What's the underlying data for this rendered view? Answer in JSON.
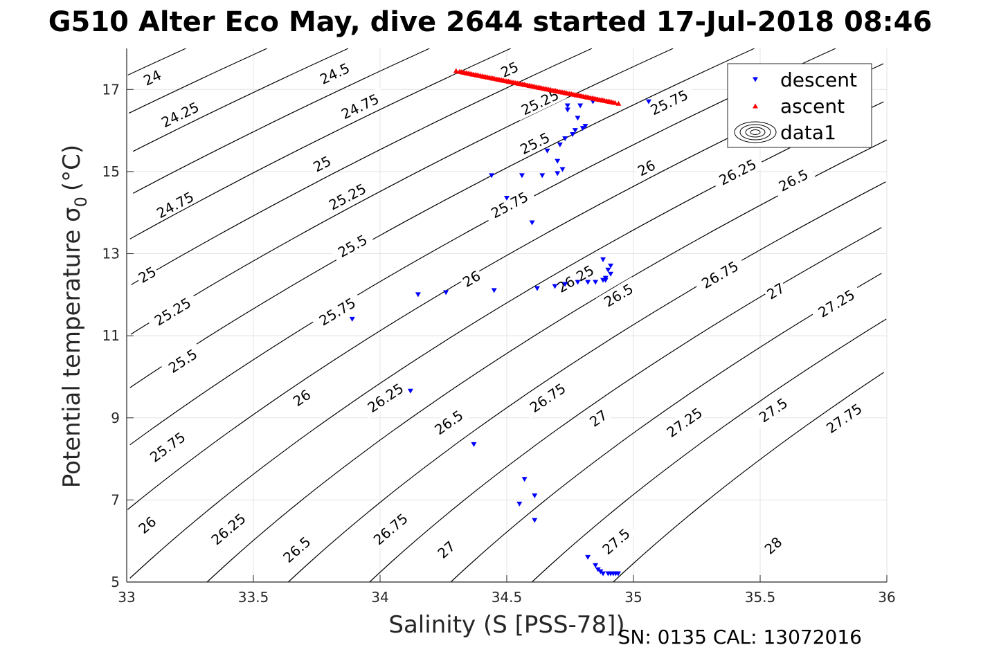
{
  "chart_data": {
    "type": "scatter",
    "title": "G510 Alter Eco May, dive 2644 started 17-Jul-2018 08:46",
    "xlabel": "Salinity (S [PSS-78])",
    "ylabel_main": "Potential temperature σ",
    "ylabel_sub": "0",
    "ylabel_unit": "(°C)",
    "footer": "SN: 0135  CAL: 13072016",
    "xlim": [
      33,
      36
    ],
    "ylim": [
      5,
      18
    ],
    "x_ticks": [
      33,
      33.5,
      34,
      34.5,
      35,
      35.5,
      36
    ],
    "x_tick_labels": [
      "33",
      "33.5",
      "34",
      "34.5",
      "35",
      "35.5",
      "36"
    ],
    "y_ticks": [
      5,
      7,
      9,
      11,
      13,
      15,
      17
    ],
    "y_tick_labels": [
      "5",
      "7",
      "9",
      "11",
      "13",
      "15",
      "17"
    ],
    "grid": true,
    "legend": {
      "placement": "top-right",
      "entries": [
        {
          "label": "descent",
          "marker": "triangle-down",
          "color": "#0000ff"
        },
        {
          "label": "ascent",
          "marker": "triangle-up",
          "color": "#ff0000"
        },
        {
          "label": "data1",
          "marker": "contour",
          "color": "#000000"
        }
      ]
    },
    "contour_levels": [
      24,
      24.25,
      24.5,
      24.75,
      25,
      25.25,
      25.5,
      25.75,
      26,
      26.25,
      26.5,
      26.75,
      27,
      27.25,
      27.5,
      27.75,
      28
    ],
    "contour_labels": [
      {
        "text": "24",
        "x": 33.1,
        "y": 17.3
      },
      {
        "text": "24.25",
        "x": 33.21,
        "y": 16.4
      },
      {
        "text": "24.5",
        "x": 33.82,
        "y": 17.4
      },
      {
        "text": "24.75",
        "x": 33.92,
        "y": 16.6
      },
      {
        "text": "25",
        "x": 34.51,
        "y": 17.5
      },
      {
        "text": "25.25",
        "x": 34.63,
        "y": 16.7
      },
      {
        "text": "25.75",
        "x": 35.14,
        "y": 16.7
      },
      {
        "text": "25",
        "x": 33.77,
        "y": 15.2
      },
      {
        "text": "25.5",
        "x": 34.61,
        "y": 15.7
      },
      {
        "text": "26",
        "x": 35.05,
        "y": 15.1
      },
      {
        "text": "26.25",
        "x": 35.41,
        "y": 15.0
      },
      {
        "text": "26.5",
        "x": 35.63,
        "y": 14.8
      },
      {
        "text": "24.75",
        "x": 33.19,
        "y": 14.2
      },
      {
        "text": "25.25",
        "x": 33.87,
        "y": 14.4
      },
      {
        "text": "25.75",
        "x": 34.51,
        "y": 14.2
      },
      {
        "text": "25.5",
        "x": 33.89,
        "y": 13.2
      },
      {
        "text": "25",
        "x": 33.08,
        "y": 12.5
      },
      {
        "text": "26",
        "x": 34.36,
        "y": 12.4
      },
      {
        "text": "26.25",
        "x": 34.77,
        "y": 12.4
      },
      {
        "text": "26.5",
        "x": 34.94,
        "y": 12.0
      },
      {
        "text": "26.75",
        "x": 35.34,
        "y": 12.5
      },
      {
        "text": "27",
        "x": 35.56,
        "y": 12.1
      },
      {
        "text": "27.25",
        "x": 35.8,
        "y": 11.8
      },
      {
        "text": "25.25",
        "x": 33.18,
        "y": 11.6
      },
      {
        "text": "25.75",
        "x": 33.83,
        "y": 11.6
      },
      {
        "text": "25.5",
        "x": 33.22,
        "y": 10.4
      },
      {
        "text": "26",
        "x": 33.69,
        "y": 9.5
      },
      {
        "text": "26.25",
        "x": 34.02,
        "y": 9.5
      },
      {
        "text": "26.75",
        "x": 34.66,
        "y": 9.5
      },
      {
        "text": "26.5",
        "x": 34.27,
        "y": 8.9
      },
      {
        "text": "27",
        "x": 34.86,
        "y": 9.0
      },
      {
        "text": "27.25",
        "x": 35.2,
        "y": 8.9
      },
      {
        "text": "27.5",
        "x": 35.55,
        "y": 9.2
      },
      {
        "text": "27.75",
        "x": 35.83,
        "y": 9.0
      },
      {
        "text": "25.75",
        "x": 33.16,
        "y": 8.3
      },
      {
        "text": "26",
        "x": 33.08,
        "y": 6.4
      },
      {
        "text": "26.25",
        "x": 33.4,
        "y": 6.3
      },
      {
        "text": "26.5",
        "x": 33.67,
        "y": 5.8
      },
      {
        "text": "26.75",
        "x": 34.04,
        "y": 6.3
      },
      {
        "text": "27",
        "x": 34.26,
        "y": 5.8
      },
      {
        "text": "27.5",
        "x": 34.93,
        "y": 6.0
      },
      {
        "text": "28",
        "x": 35.55,
        "y": 5.9
      }
    ],
    "series": [
      {
        "name": "descent",
        "x": [
          34.84,
          34.74,
          34.74,
          34.79,
          34.78,
          34.81,
          34.8,
          34.76,
          34.77,
          34.73,
          34.71,
          34.66,
          34.7,
          34.7,
          34.72,
          34.44,
          34.56,
          34.64,
          34.5,
          34.6,
          34.88,
          34.91,
          34.9,
          34.91,
          34.89,
          34.89,
          34.88,
          34.85,
          34.82,
          34.78,
          34.73,
          34.69,
          34.62,
          34.45,
          34.26,
          34.15,
          33.89,
          34.12,
          34.37,
          34.57,
          34.55,
          34.61,
          34.61,
          35.06,
          34.82,
          34.85,
          34.86,
          34.87,
          34.88,
          34.9,
          34.91,
          34.92,
          34.93,
          34.94
        ],
        "y": [
          16.7,
          16.6,
          16.5,
          16.6,
          16.3,
          16.1,
          16.05,
          15.9,
          16.0,
          15.8,
          15.65,
          15.5,
          15.25,
          14.95,
          15.05,
          14.9,
          14.9,
          14.9,
          14.35,
          13.75,
          12.85,
          12.7,
          12.6,
          12.5,
          12.4,
          12.35,
          12.35,
          12.3,
          12.3,
          12.3,
          12.25,
          12.2,
          12.15,
          12.1,
          12.05,
          12.0,
          11.4,
          9.65,
          8.35,
          7.5,
          6.9,
          7.1,
          6.5,
          16.7,
          5.6,
          5.4,
          5.3,
          5.25,
          5.2,
          5.2,
          5.2,
          5.2,
          5.2,
          5.2
        ]
      },
      {
        "name": "ascent",
        "x0": 34.3,
        "y0": 17.46,
        "x1": 34.9,
        "y1": 16.72,
        "n": 30
      }
    ]
  }
}
